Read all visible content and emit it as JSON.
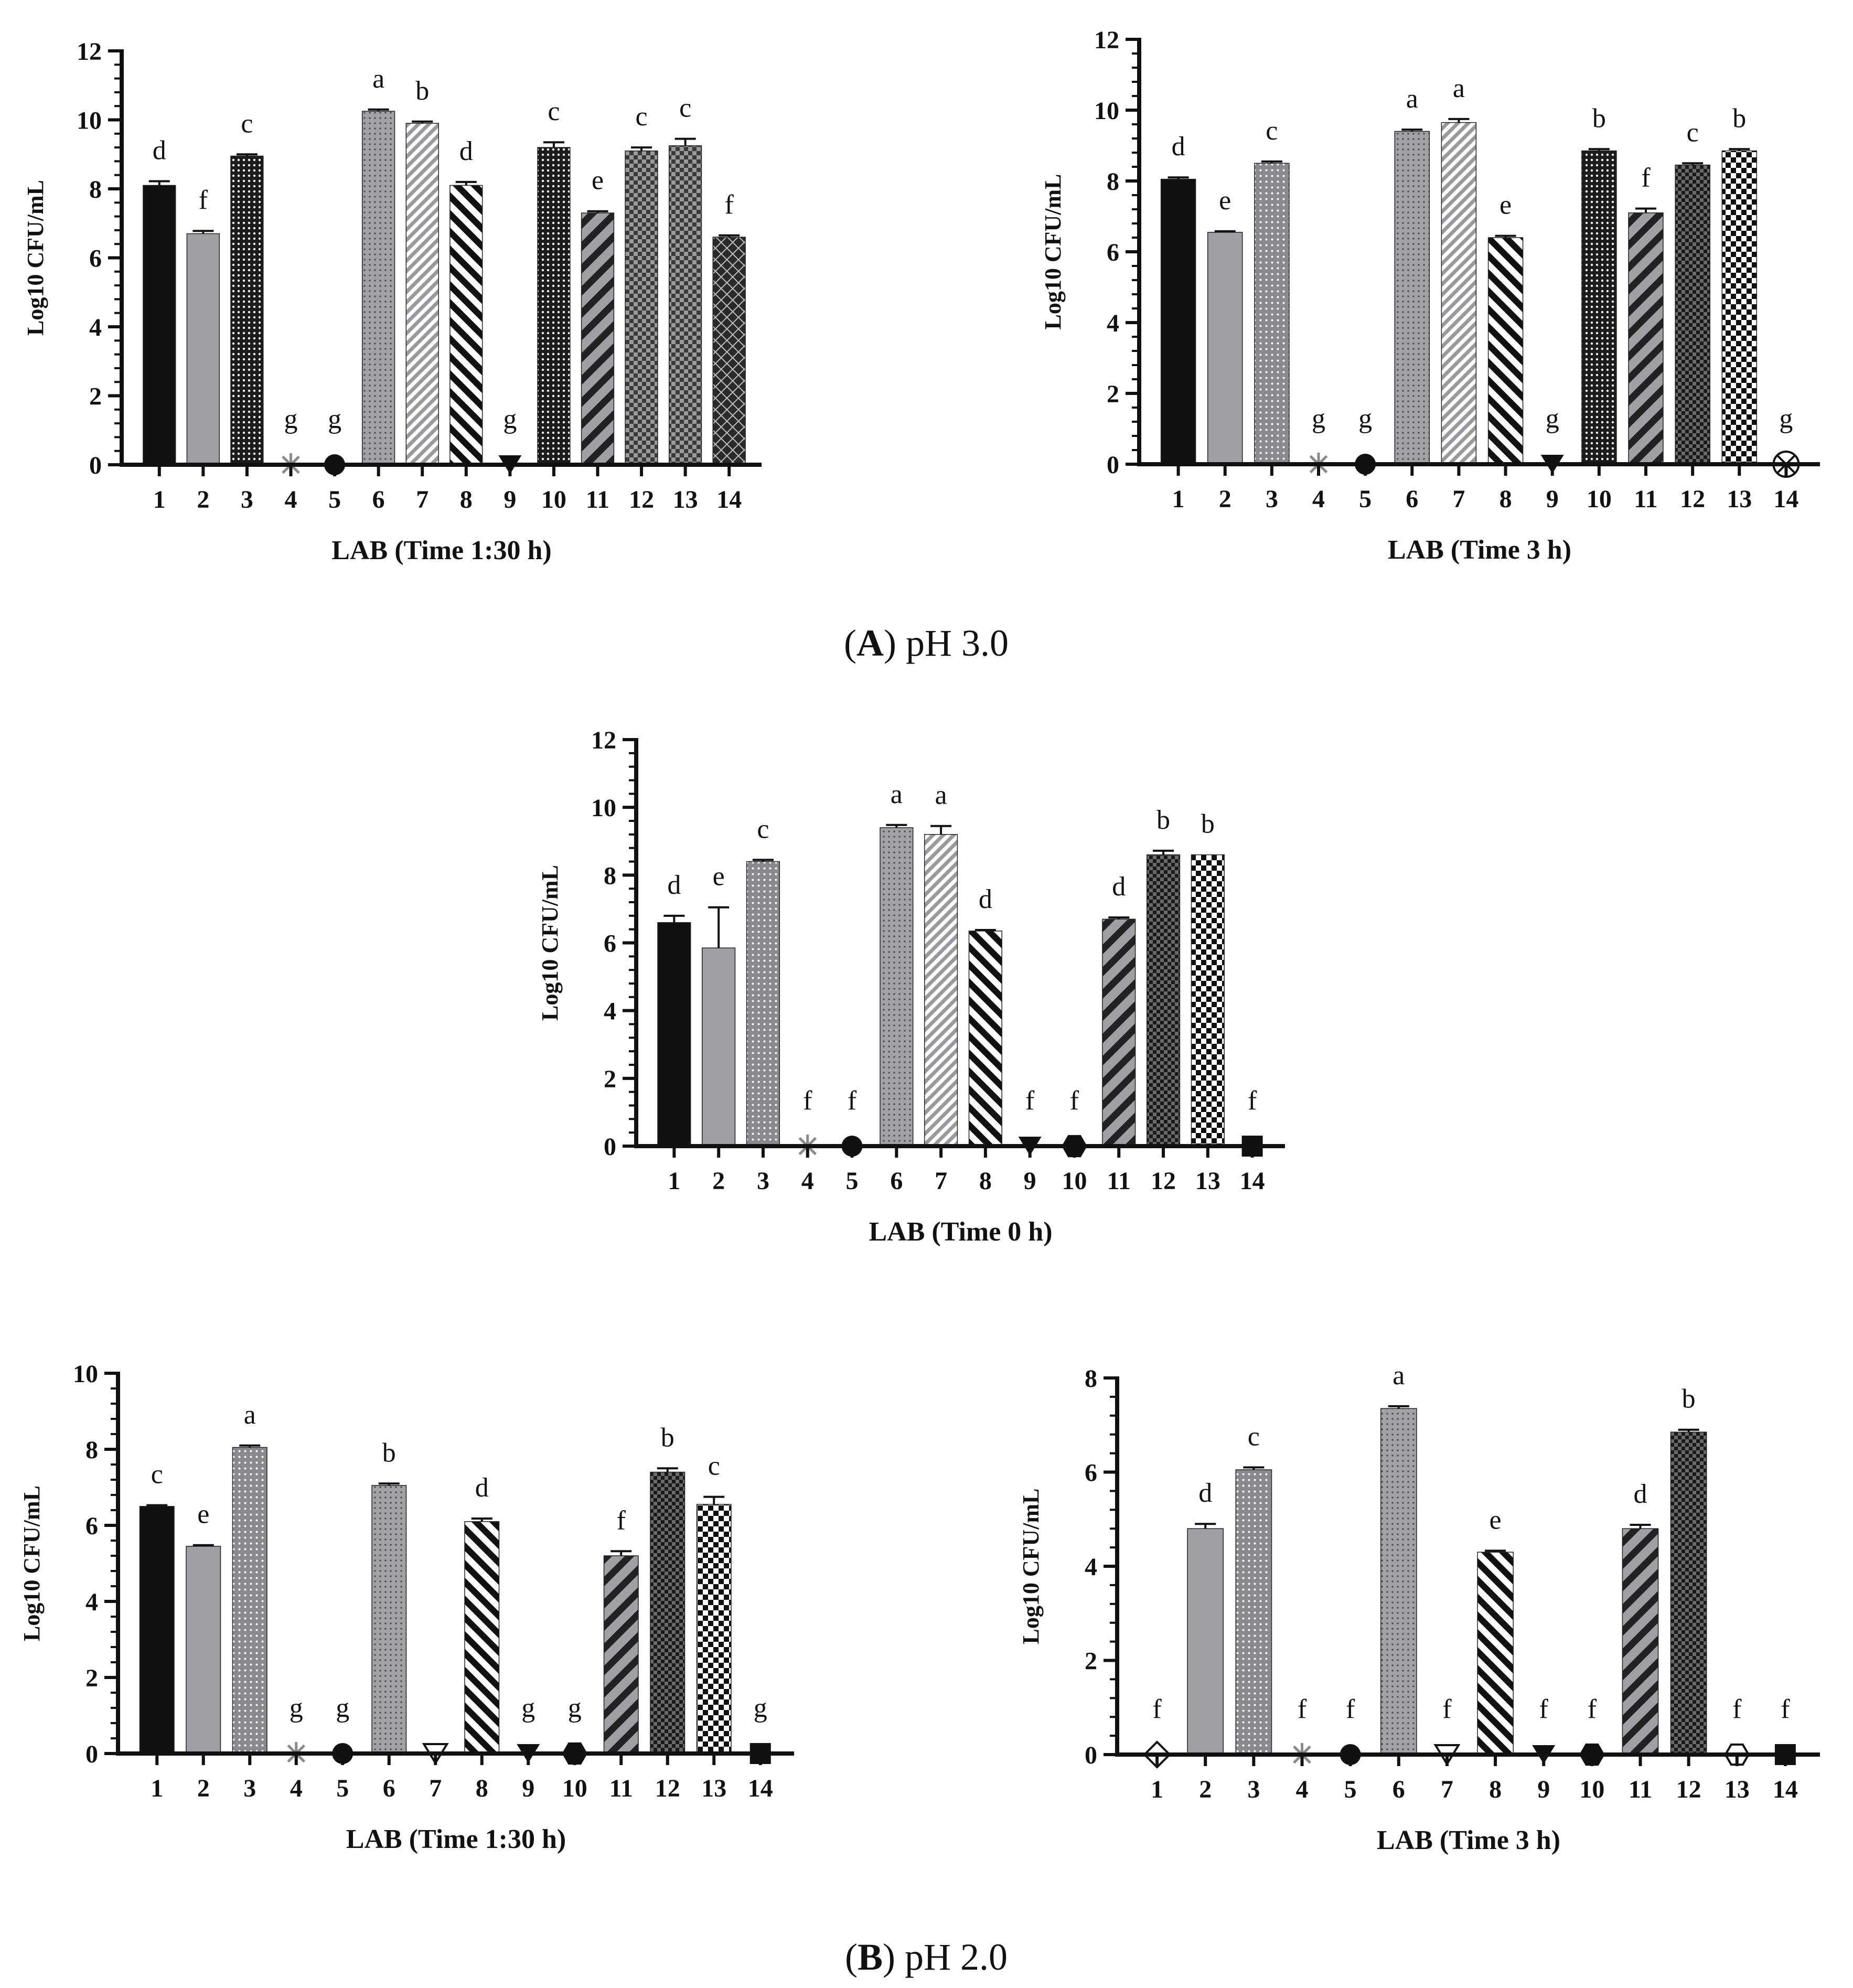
{
  "captions": [
    {
      "letter": "A",
      "text": "pH 3.0"
    },
    {
      "letter": "B",
      "text": "pH 2.0"
    }
  ],
  "colors": {
    "ink": "#111111",
    "gray": "#a0a0a4",
    "dark": "#2a2a2a"
  },
  "chart_data": [
    {
      "type": "bar",
      "panel": "A",
      "position": "top-left",
      "xlabel": "LAB (Time 1:30 h)",
      "ylabel": "Log10 CFU/mL",
      "ylim": [
        0,
        12
      ],
      "yticks": [
        0,
        2,
        4,
        6,
        8,
        10,
        12
      ],
      "categories": [
        "1",
        "2",
        "3",
        "4",
        "5",
        "6",
        "7",
        "8",
        "9",
        "10",
        "11",
        "12",
        "13",
        "14"
      ],
      "values": [
        8.1,
        6.7,
        8.95,
        0,
        0,
        10.25,
        9.9,
        8.1,
        0,
        9.2,
        7.3,
        9.1,
        9.25,
        6.6
      ],
      "errors": [
        0.12,
        0.08,
        0.05,
        0,
        0,
        0.05,
        0.05,
        0.1,
        0,
        0.15,
        0.05,
        0.1,
        0.2,
        0.05
      ],
      "letters": [
        "d",
        "f",
        "c",
        "g",
        "g",
        "a",
        "b",
        "d",
        "g",
        "c",
        "e",
        "c",
        "c",
        "f"
      ],
      "markers": [
        null,
        null,
        null,
        "asterisk",
        "circle",
        null,
        null,
        null,
        "triangle-down",
        null,
        null,
        null,
        null,
        null
      ]
    },
    {
      "type": "bar",
      "panel": "A",
      "position": "top-right",
      "xlabel": "LAB (Time 3 h)",
      "ylabel": "Log10 CFU/mL",
      "ylim": [
        0,
        12
      ],
      "yticks": [
        0,
        2,
        4,
        6,
        8,
        10,
        12
      ],
      "categories": [
        "1",
        "2",
        "3",
        "4",
        "5",
        "6",
        "7",
        "8",
        "9",
        "10",
        "11",
        "12",
        "13",
        "14"
      ],
      "values": [
        8.05,
        6.55,
        8.5,
        0,
        0,
        9.4,
        9.65,
        6.4,
        0,
        8.85,
        7.1,
        8.45,
        8.85,
        0
      ],
      "errors": [
        0.05,
        0.03,
        0.05,
        0,
        0,
        0.05,
        0.1,
        0.05,
        0,
        0.05,
        0.12,
        0.05,
        0.05,
        0
      ],
      "letters": [
        "d",
        "e",
        "c",
        "g",
        "g",
        "a",
        "a",
        "e",
        "g",
        "b",
        "f",
        "c",
        "b",
        "g"
      ],
      "markers": [
        null,
        null,
        null,
        "asterisk",
        "circle",
        null,
        null,
        null,
        "triangle-down",
        null,
        null,
        null,
        null,
        "circle-x"
      ]
    },
    {
      "type": "bar",
      "panel": "B",
      "position": "middle",
      "xlabel": "LAB (Time 0 h)",
      "ylabel": "Log10 CFU/mL",
      "ylim": [
        0,
        12
      ],
      "yticks": [
        0,
        2,
        4,
        6,
        8,
        10,
        12
      ],
      "categories": [
        "1",
        "2",
        "3",
        "4",
        "5",
        "6",
        "7",
        "8",
        "9",
        "10",
        "11",
        "12",
        "13",
        "14"
      ],
      "values": [
        6.6,
        5.85,
        8.4,
        0,
        0,
        9.4,
        9.2,
        6.35,
        0,
        0,
        6.7,
        8.6,
        8.6,
        0
      ],
      "errors": [
        0.2,
        1.2,
        0.05,
        0,
        0,
        0.08,
        0.25,
        0.03,
        0,
        0,
        0.05,
        0.12,
        0,
        0
      ],
      "letters": [
        "d",
        "e",
        "c",
        "f",
        "f",
        "a",
        "a",
        "d",
        "f",
        "f",
        "d",
        "b",
        "b",
        "f"
      ],
      "markers": [
        null,
        null,
        null,
        "asterisk",
        "circle",
        null,
        null,
        null,
        "triangle-down",
        "hexagon",
        null,
        null,
        null,
        "square"
      ]
    },
    {
      "type": "bar",
      "panel": "B",
      "position": "bottom-left",
      "xlabel": "LAB (Time 1:30 h)",
      "ylabel": "Log10 CFU/mL",
      "ylim": [
        0,
        10
      ],
      "yticks": [
        0,
        2,
        4,
        6,
        8,
        10
      ],
      "categories": [
        "1",
        "2",
        "3",
        "4",
        "5",
        "6",
        "7",
        "8",
        "9",
        "10",
        "11",
        "12",
        "13",
        "14"
      ],
      "values": [
        6.5,
        5.45,
        8.05,
        0,
        0,
        7.05,
        0,
        6.1,
        0,
        0,
        5.2,
        7.4,
        6.55,
        0
      ],
      "errors": [
        0.03,
        0.03,
        0.05,
        0,
        0,
        0.05,
        0,
        0.08,
        0,
        0,
        0.12,
        0.1,
        0.2,
        0
      ],
      "letters": [
        "c",
        "e",
        "a",
        "g",
        "g",
        "b",
        "",
        "d",
        "g",
        "g",
        "f",
        "b",
        "c",
        "g"
      ],
      "markers": [
        null,
        null,
        null,
        "asterisk",
        "circle",
        null,
        "triangle-down-open",
        null,
        "triangle-down",
        "hexagon",
        null,
        null,
        null,
        "square"
      ]
    },
    {
      "type": "bar",
      "panel": "B",
      "position": "bottom-right",
      "xlabel": "LAB (Time 3 h)",
      "ylabel": "Log10 CFU/mL",
      "ylim": [
        0,
        8
      ],
      "yticks": [
        0,
        2,
        4,
        6,
        8
      ],
      "categories": [
        "1",
        "2",
        "3",
        "4",
        "5",
        "6",
        "7",
        "8",
        "9",
        "10",
        "11",
        "12",
        "13",
        "14"
      ],
      "values": [
        0,
        4.8,
        6.05,
        0,
        0,
        7.35,
        0,
        4.3,
        0,
        0,
        4.8,
        6.85,
        0,
        0
      ],
      "errors": [
        0,
        0.1,
        0.05,
        0,
        0,
        0.05,
        0,
        0.03,
        0,
        0,
        0.08,
        0.05,
        0,
        0
      ],
      "letters": [
        "f",
        "d",
        "c",
        "f",
        "f",
        "a",
        "f",
        "e",
        "f",
        "f",
        "d",
        "b",
        "f",
        "f"
      ],
      "markers": [
        "diamond",
        null,
        null,
        "asterisk",
        "circle",
        null,
        "triangle-down-open",
        null,
        "triangle-down",
        "hexagon",
        null,
        null,
        "hexagon-open",
        "square"
      ]
    }
  ]
}
